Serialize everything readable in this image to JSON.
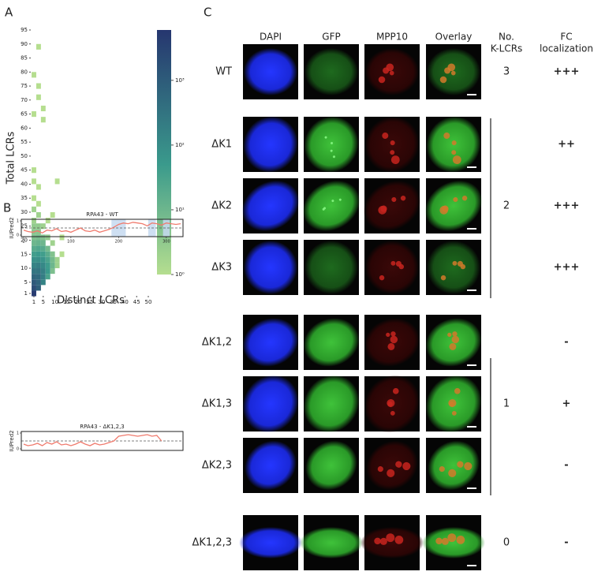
{
  "panel_a": {
    "letter": "A",
    "type": "heatmap",
    "xlabel": "Distinct LCRs",
    "ylabel": "Total LCRs",
    "xlim": [
      1,
      50
    ],
    "ylim": [
      1,
      95
    ],
    "xticks": [
      1,
      5,
      10,
      15,
      20,
      25,
      30,
      35,
      40,
      45,
      50
    ],
    "yticks": [
      1,
      5,
      10,
      15,
      20,
      25,
      30,
      35,
      40,
      45,
      50,
      55,
      60,
      65,
      70,
      75,
      80,
      85,
      90,
      95
    ],
    "colorbar_lim": [
      1,
      6000
    ],
    "colorbar_log": true,
    "colorbar_ticks": [
      {
        "value": 1,
        "label": "10⁰"
      },
      {
        "value": 10,
        "label": "10¹"
      },
      {
        "value": 100,
        "label": "10²"
      },
      {
        "value": 1000,
        "label": "10³"
      }
    ],
    "cells": [
      [
        1,
        1,
        5000
      ],
      [
        1,
        3,
        2000
      ],
      [
        1,
        5,
        1200
      ],
      [
        1,
        7,
        600
      ],
      [
        1,
        9,
        300
      ],
      [
        1,
        11,
        150
      ],
      [
        1,
        13,
        80
      ],
      [
        1,
        15,
        40
      ],
      [
        1,
        17,
        20
      ],
      [
        1,
        19,
        10
      ],
      [
        1,
        21,
        6
      ],
      [
        1,
        23,
        4
      ],
      [
        1,
        25,
        3
      ],
      [
        1,
        27,
        2
      ],
      [
        1,
        31,
        2
      ],
      [
        1,
        35,
        1
      ],
      [
        1,
        41,
        1
      ],
      [
        1,
        45,
        1
      ],
      [
        1,
        65,
        1
      ],
      [
        1,
        79,
        1
      ],
      [
        3,
        89,
        1
      ],
      [
        3,
        3,
        900
      ],
      [
        3,
        5,
        700
      ],
      [
        3,
        7,
        500
      ],
      [
        3,
        9,
        300
      ],
      [
        3,
        11,
        180
      ],
      [
        3,
        13,
        90
      ],
      [
        3,
        15,
        50
      ],
      [
        3,
        17,
        25
      ],
      [
        3,
        19,
        12
      ],
      [
        3,
        21,
        7
      ],
      [
        3,
        23,
        4
      ],
      [
        3,
        25,
        3
      ],
      [
        3,
        29,
        2
      ],
      [
        3,
        33,
        1
      ],
      [
        3,
        39,
        1
      ],
      [
        3,
        75,
        1
      ],
      [
        3,
        71,
        1
      ],
      [
        5,
        5,
        150
      ],
      [
        5,
        7,
        200
      ],
      [
        5,
        9,
        180
      ],
      [
        5,
        11,
        120
      ],
      [
        5,
        13,
        70
      ],
      [
        5,
        15,
        40
      ],
      [
        5,
        17,
        20
      ],
      [
        5,
        19,
        10
      ],
      [
        5,
        21,
        5
      ],
      [
        5,
        25,
        2
      ],
      [
        5,
        63,
        1
      ],
      [
        5,
        67,
        1
      ],
      [
        7,
        7,
        30
      ],
      [
        7,
        9,
        50
      ],
      [
        7,
        11,
        45
      ],
      [
        7,
        13,
        30
      ],
      [
        7,
        15,
        18
      ],
      [
        7,
        17,
        8
      ],
      [
        7,
        21,
        3
      ],
      [
        7,
        27,
        1
      ],
      [
        9,
        9,
        6
      ],
      [
        9,
        11,
        10
      ],
      [
        9,
        13,
        8
      ],
      [
        9,
        15,
        5
      ],
      [
        9,
        19,
        2
      ],
      [
        9,
        29,
        1
      ],
      [
        11,
        11,
        2
      ],
      [
        11,
        13,
        2
      ],
      [
        11,
        41,
        1
      ],
      [
        13,
        15,
        1
      ],
      [
        13,
        21,
        1
      ]
    ]
  },
  "panel_b": {
    "letter": "B",
    "type": "line",
    "plots": [
      {
        "title": "RPA43 - WT",
        "ylabel": "IUPred2",
        "color": "#f07b6e",
        "xlim": [
          1,
          330
        ],
        "ylim": [
          0,
          1
        ],
        "yticks": [
          0,
          1
        ],
        "xticks": [
          1,
          100,
          200,
          300
        ],
        "threshold": 0.5,
        "highlight_regions": [
          [
            185,
            215
          ],
          [
            262,
            278
          ],
          [
            293,
            307
          ]
        ],
        "x": [
          1,
          10,
          20,
          30,
          40,
          50,
          60,
          70,
          80,
          90,
          100,
          110,
          120,
          130,
          140,
          150,
          160,
          170,
          180,
          190,
          200,
          210,
          220,
          230,
          240,
          250,
          260,
          270,
          280,
          290,
          300,
          310,
          320,
          330
        ],
        "values": [
          0.35,
          0.25,
          0.2,
          0.3,
          0.15,
          0.35,
          0.3,
          0.45,
          0.25,
          0.3,
          0.2,
          0.35,
          0.5,
          0.3,
          0.25,
          0.35,
          0.2,
          0.3,
          0.4,
          0.55,
          0.75,
          0.85,
          0.8,
          0.9,
          0.85,
          0.8,
          0.65,
          0.85,
          0.8,
          0.7,
          0.85,
          0.8,
          0.75,
          0.8
        ]
      },
      {
        "title": "RPA43 - ΔK1,2,3",
        "ylabel": "IUPred2",
        "color": "#f07b6e",
        "xlim": [
          1,
          330
        ],
        "ylim": [
          0,
          1
        ],
        "yticks": [
          0,
          1
        ],
        "threshold": 0.5,
        "x": [
          1,
          10,
          20,
          30,
          40,
          50,
          60,
          70,
          80,
          90,
          100,
          110,
          120,
          130,
          140,
          150,
          160,
          170,
          180,
          190,
          200,
          210,
          220,
          230,
          240,
          250,
          260,
          270,
          280,
          290
        ],
        "values": [
          0.3,
          0.2,
          0.25,
          0.35,
          0.2,
          0.4,
          0.3,
          0.45,
          0.25,
          0.3,
          0.2,
          0.3,
          0.45,
          0.3,
          0.2,
          0.35,
          0.25,
          0.3,
          0.4,
          0.5,
          0.8,
          0.85,
          0.9,
          0.85,
          0.8,
          0.85,
          0.9,
          0.8,
          0.85,
          0.5
        ]
      }
    ]
  },
  "panel_c": {
    "letter": "C",
    "columns": [
      "DAPI",
      "GFP",
      "MPP10",
      "Overlay"
    ],
    "k_lcrs_header": [
      "No.",
      "K-LCRs"
    ],
    "fc_header": [
      "FC",
      "localization"
    ],
    "rows": [
      {
        "label": "WT",
        "k_lcrs": 3,
        "fc": "+++"
      },
      {
        "label": "ΔK1",
        "k_lcrs": null,
        "fc": "++"
      },
      {
        "label": "ΔK2",
        "k_lcrs": 2,
        "fc": "+++"
      },
      {
        "label": "ΔK3",
        "k_lcrs": null,
        "fc": "+++"
      },
      {
        "label": "ΔK1,2",
        "k_lcrs": null,
        "fc": "-"
      },
      {
        "label": "ΔK1,3",
        "k_lcrs": 1,
        "fc": "+"
      },
      {
        "label": "ΔK2,3",
        "k_lcrs": null,
        "fc": "-"
      },
      {
        "label": "ΔK1,2,3",
        "k_lcrs": 0,
        "fc": "-"
      }
    ]
  }
}
